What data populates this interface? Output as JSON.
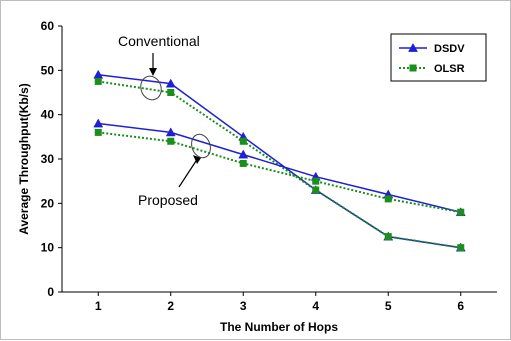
{
  "chart_data": {
    "type": "line",
    "xlabel": "The Number of Hops",
    "ylabel": "Average Throughput(Kb/s)",
    "xlim": [
      1,
      6
    ],
    "ylim": [
      0,
      60
    ],
    "x_ticks": [
      1,
      2,
      3,
      4,
      5,
      6
    ],
    "y_ticks": [
      0,
      10,
      20,
      30,
      40,
      50,
      60
    ],
    "grid": false,
    "legend": {
      "position": "top-right",
      "entries": [
        "DSDV",
        "OLSR"
      ]
    },
    "series": [
      {
        "name": "DSDV",
        "group": "Conventional",
        "color": "#1f1fd6",
        "line_style": "solid",
        "marker": "triangle",
        "x": [
          1,
          2,
          3,
          4,
          5,
          6
        ],
        "values": [
          49,
          47,
          35,
          23,
          12.5,
          10
        ]
      },
      {
        "name": "OLSR",
        "group": "Conventional",
        "color": "#1a8f1a",
        "line_style": "dotted",
        "marker": "square",
        "x": [
          1,
          2,
          3,
          4,
          5,
          6
        ],
        "values": [
          47.5,
          45,
          34,
          23,
          12.5,
          10
        ]
      },
      {
        "name": "DSDV",
        "group": "Proposed",
        "color": "#1f1fd6",
        "line_style": "solid",
        "marker": "triangle",
        "x": [
          1,
          2,
          3,
          4,
          5,
          6
        ],
        "values": [
          38,
          36,
          31,
          26,
          22,
          18
        ]
      },
      {
        "name": "OLSR",
        "group": "Proposed",
        "color": "#1a8f1a",
        "line_style": "dotted",
        "marker": "square",
        "x": [
          1,
          2,
          3,
          4,
          5,
          6
        ],
        "values": [
          36,
          34,
          29,
          25,
          21,
          18
        ]
      }
    ],
    "annotations": [
      {
        "text": "Conventional",
        "target": "Conventional",
        "arrow_at_x": 2
      },
      {
        "text": "Proposed",
        "target": "Proposed",
        "arrow_at_x": 2.3
      }
    ]
  }
}
